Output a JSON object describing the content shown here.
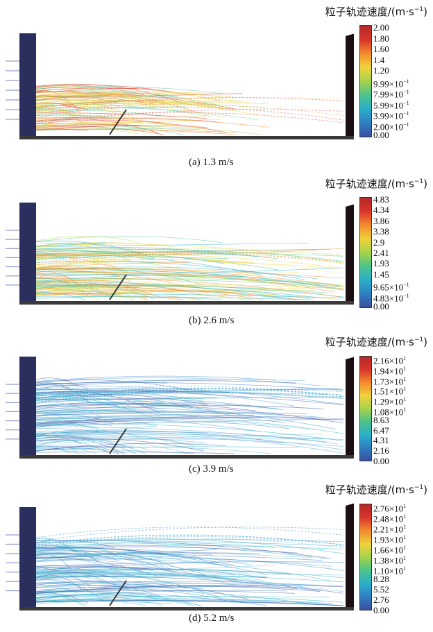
{
  "panels": [
    {
      "colorbar_title": "粒子轨迹速度/(m·s",
      "unit_exponent": "−1",
      "unit_close": ")",
      "caption": "(a) 1.3 m/s",
      "ticks": [
        {
          "m": "2.00"
        },
        {
          "m": "1.80"
        },
        {
          "m": "1.60"
        },
        {
          "m": "1.4"
        },
        {
          "m": "1.20"
        },
        {
          "m": "9.99×10",
          "e": "−1"
        },
        {
          "m": "7.99×10",
          "e": "−1"
        },
        {
          "m": "5.99×10",
          "e": "−1"
        },
        {
          "m": "3.99×10",
          "e": "−1"
        },
        {
          "m": "2.00×10",
          "e": "−1"
        },
        {
          "m": "0.00"
        }
      ]
    },
    {
      "colorbar_title": "粒子轨迹速度/(m·s",
      "unit_exponent": "−1",
      "unit_close": ")",
      "caption": "(b) 2.6 m/s",
      "ticks": [
        {
          "m": "4.83"
        },
        {
          "m": "4.34"
        },
        {
          "m": "3.86"
        },
        {
          "m": "3.38"
        },
        {
          "m": "2.9"
        },
        {
          "m": "2.41"
        },
        {
          "m": "1.93"
        },
        {
          "m": "1.45"
        },
        {
          "m": "9.65×10",
          "e": "−1"
        },
        {
          "m": "4.83×10",
          "e": "−1"
        },
        {
          "m": "0.00"
        }
      ]
    },
    {
      "colorbar_title": "粒子轨迹速度/(m·s",
      "unit_exponent": "−1",
      "unit_close": ")",
      "caption": "(c) 3.9 m/s",
      "ticks": [
        {
          "m": "2.16×10",
          "e": "1"
        },
        {
          "m": "1.94×10",
          "e": "1"
        },
        {
          "m": "1.73×10",
          "e": "1"
        },
        {
          "m": "1.51×10",
          "e": "1"
        },
        {
          "m": "1.29×10",
          "e": "1"
        },
        {
          "m": "1.08×10",
          "e": "1"
        },
        {
          "m": "8.63"
        },
        {
          "m": "6.47"
        },
        {
          "m": "4.31"
        },
        {
          "m": "2.16"
        },
        {
          "m": "0.00"
        }
      ]
    },
    {
      "colorbar_title": "粒子轨迹速度/(m·s",
      "unit_exponent": "−1",
      "unit_close": ")",
      "caption": "(d) 5.2 m/s",
      "ticks": [
        {
          "m": "2.76×10",
          "e": "1"
        },
        {
          "m": "2.48×10",
          "e": "1"
        },
        {
          "m": "2.21×10",
          "e": "1"
        },
        {
          "m": "1.93×10",
          "e": "1"
        },
        {
          "m": "1.66×10",
          "e": "1"
        },
        {
          "m": "1.38×10",
          "e": "1"
        },
        {
          "m": "1.10×10",
          "e": "1"
        },
        {
          "m": "8.28"
        },
        {
          "m": "5.52"
        },
        {
          "m": "2.76"
        },
        {
          "m": "0.00"
        }
      ]
    }
  ],
  "colors": {
    "colormap": [
      "#3a4fa0",
      "#2f7fc1",
      "#2ab0c9",
      "#4cc38a",
      "#a6d34a",
      "#f0d23a",
      "#f28a2e",
      "#d9342b",
      "#b52a2a"
    ],
    "wall": "#2b2f5e",
    "right_wall": "#1b0e12",
    "floor": "#3a3a3a"
  }
}
